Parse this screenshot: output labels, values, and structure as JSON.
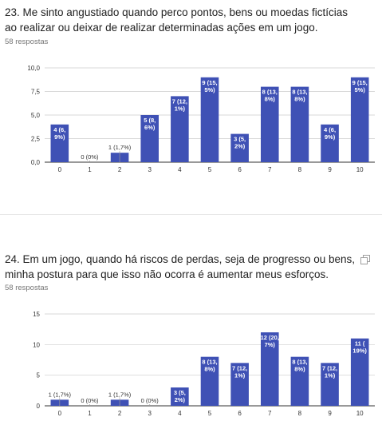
{
  "charts": [
    {
      "title": "23. Me sinto angustiado quando perco pontos, bens ou moedas fictícias ao realizar ou deixar de realizar determinadas ações em um jogo.",
      "responses": "58 respostas",
      "chart_data": {
        "type": "bar",
        "categories": [
          "0",
          "1",
          "2",
          "3",
          "4",
          "5",
          "6",
          "7",
          "8",
          "9",
          "10"
        ],
        "values": [
          4,
          0,
          1,
          5,
          7,
          9,
          3,
          8,
          8,
          4,
          9
        ],
        "data_labels": [
          "4 (6,9%)",
          "0 (0%)",
          "1 (1,7%)",
          "5 (8,6%)",
          "7 (12,1%)",
          "9 (15,5%)",
          "3 (5,2%)",
          "8 (13,8%)",
          "8 (13,8%)",
          "4 (6,9%)",
          "9 (15,5%)"
        ],
        "yticks": [
          "0,0",
          "2,5",
          "5,0",
          "7,5",
          "10,0"
        ],
        "ylim": [
          0,
          10
        ],
        "bar_color": "#3f51b5",
        "grid": true
      }
    },
    {
      "title": "24. Em um jogo, quando há riscos de perdas, seja de progresso ou bens, minha postura para que isso não ocorra é aumentar meus esforços.",
      "responses": "58 respostas",
      "chart_data": {
        "type": "bar",
        "categories": [
          "0",
          "1",
          "2",
          "3",
          "4",
          "5",
          "6",
          "7",
          "8",
          "9",
          "10"
        ],
        "values": [
          1,
          0,
          1,
          0,
          3,
          8,
          7,
          12,
          8,
          7,
          11
        ],
        "data_labels": [
          "1 (1,7%)",
          "0 (0%)",
          "1 (1,7%)",
          "0 (0%)",
          "3 (5,2%)",
          "8 (13,8%)",
          "7 (12,1%)",
          "12 (20,7%)",
          "8 (13,8%)",
          "7 (12,1%)",
          "11 (19%)"
        ],
        "yticks": [
          "0",
          "5",
          "10",
          "15"
        ],
        "ylim": [
          0,
          15
        ],
        "bar_color": "#3f51b5",
        "grid": true
      }
    }
  ]
}
